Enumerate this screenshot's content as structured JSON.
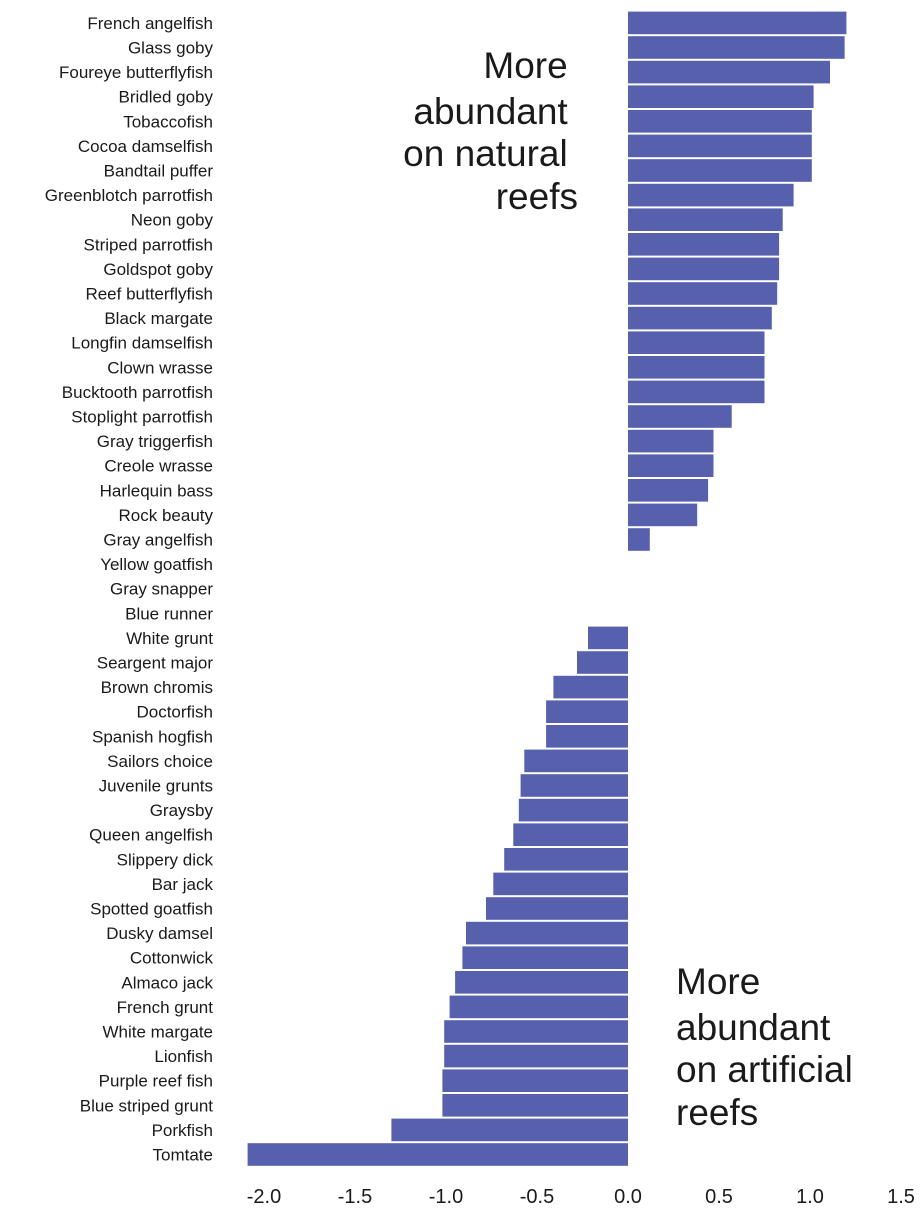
{
  "chart_data": {
    "type": "bar",
    "orientation": "horizontal",
    "bar_color": "#5660ad",
    "categories": [
      "French angelfish",
      "Glass goby",
      "Foureye butterflyfish",
      "Bridled goby",
      "Tobaccofish",
      "Cocoa damselfish",
      "Bandtail puffer",
      "Greenblotch parrotfish",
      "Neon goby",
      "Striped parrotfish",
      "Goldspot goby",
      "Reef butterflyfish",
      "Black margate",
      "Longfin damselfish",
      "Clown wrasse",
      "Bucktooth parrotfish",
      "Stoplight parrotfish",
      "Gray triggerfish",
      "Creole wrasse",
      "Harlequin bass",
      "Rock beauty",
      "Gray angelfish",
      "Yellow goatfish",
      "Gray snapper",
      "Blue runner",
      "White grunt",
      "Seargent major",
      "Brown chromis",
      "Doctorfish",
      "Spanish hogfish",
      "Sailors choice",
      "Juvenile grunts",
      "Graysby",
      "Queen angelfish",
      "Slippery dick",
      "Bar jack",
      "Spotted goatfish",
      "Dusky damsel",
      "Cottonwick",
      "Almaco jack",
      "French grunt",
      "White margate",
      "Lionfish",
      "Purple reef fish",
      "Blue striped grunt",
      "Porkfish",
      "Tomtate"
    ],
    "values": [
      1.2,
      1.19,
      1.11,
      1.02,
      1.01,
      1.01,
      1.01,
      0.91,
      0.85,
      0.83,
      0.83,
      0.82,
      0.79,
      0.75,
      0.75,
      0.75,
      0.57,
      0.47,
      0.47,
      0.44,
      0.38,
      0.12,
      0,
      0,
      0,
      -0.22,
      -0.28,
      -0.41,
      -0.45,
      -0.45,
      -0.57,
      -0.59,
      -0.6,
      -0.63,
      -0.68,
      -0.74,
      -0.78,
      -0.89,
      -0.91,
      -0.95,
      -0.98,
      -1.01,
      -1.01,
      -1.02,
      -1.02,
      -1.3,
      -2.09
    ],
    "xlim": [
      -2.1,
      1.5
    ],
    "xticks": [
      -2.0,
      -1.5,
      -1.0,
      -0.5,
      0.0,
      0.5,
      1.0,
      1.5
    ],
    "xtick_labels": [
      "-2.0",
      "-1.5",
      "-1.0",
      "-0.5",
      "0.0",
      "0.5",
      "1.0",
      "1.5"
    ],
    "annotations": {
      "natural": [
        "More",
        "abundant",
        "on natural",
        "reefs"
      ],
      "artificial": [
        "More",
        "abundant",
        "on artificial",
        "reefs"
      ]
    }
  }
}
